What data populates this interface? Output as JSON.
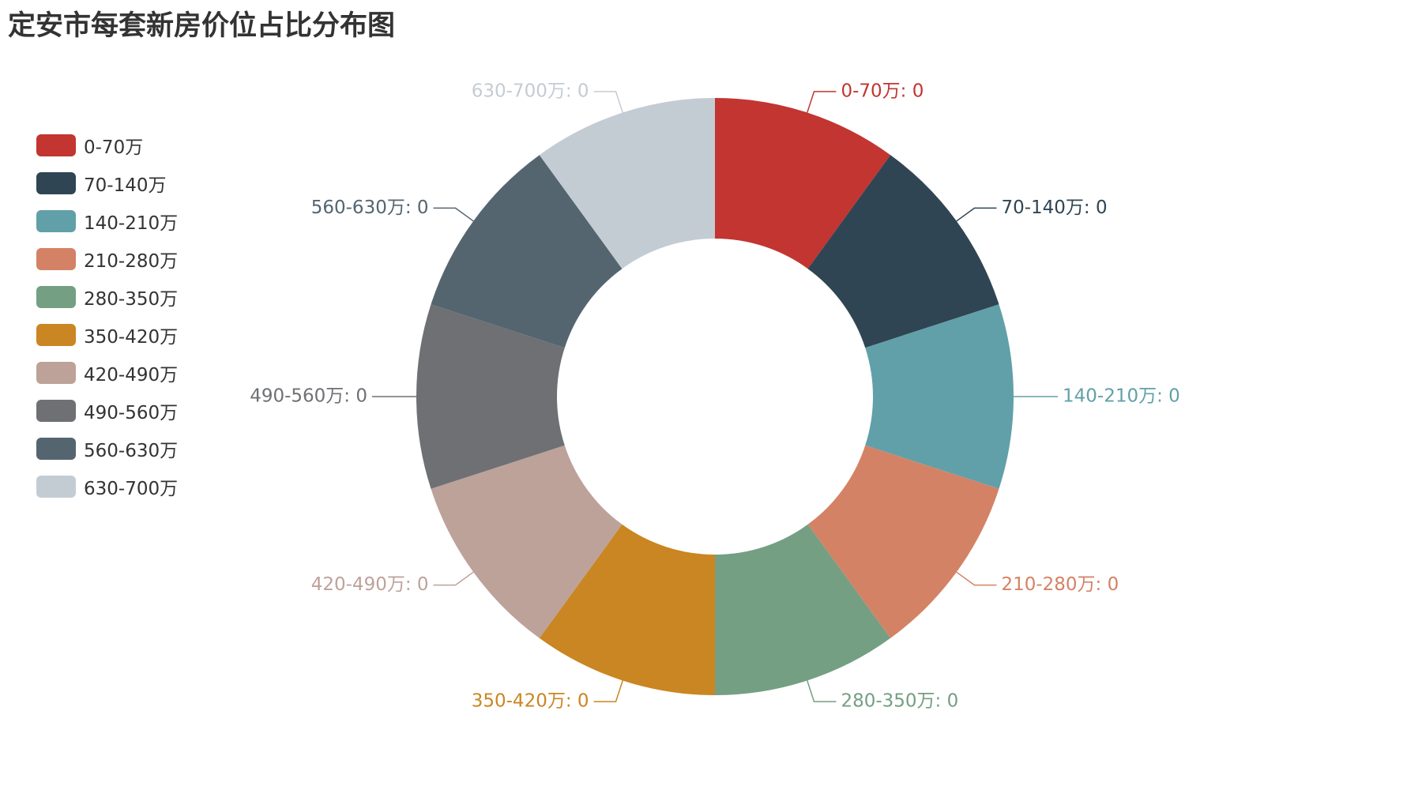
{
  "chart_data": {
    "type": "pie",
    "variant": "donut",
    "title": "定安市每套新房价位占比分布图",
    "legend_position": "left",
    "unit_suffix": "万",
    "categories": [
      "0-70万",
      "70-140万",
      "140-210万",
      "210-280万",
      "280-350万",
      "350-420万",
      "420-490万",
      "490-560万",
      "560-630万",
      "630-700万"
    ],
    "values": [
      0,
      0,
      0,
      0,
      0,
      0,
      0,
      0,
      0,
      0
    ],
    "slice_labels": [
      "0-70万: 0",
      "70-140万: 0",
      "140-210万: 0",
      "210-280万: 0",
      "280-350万: 0",
      "350-420万: 0",
      "420-490万: 0",
      "490-560万: 0",
      "560-630万: 0",
      "630-700万: 0"
    ],
    "colors": [
      "#c23531",
      "#2f4554",
      "#61a0a8",
      "#d48265",
      "#749f83",
      "#ca8622",
      "#bda29a",
      "#6e7074",
      "#546570",
      "#c4ccd3"
    ]
  }
}
